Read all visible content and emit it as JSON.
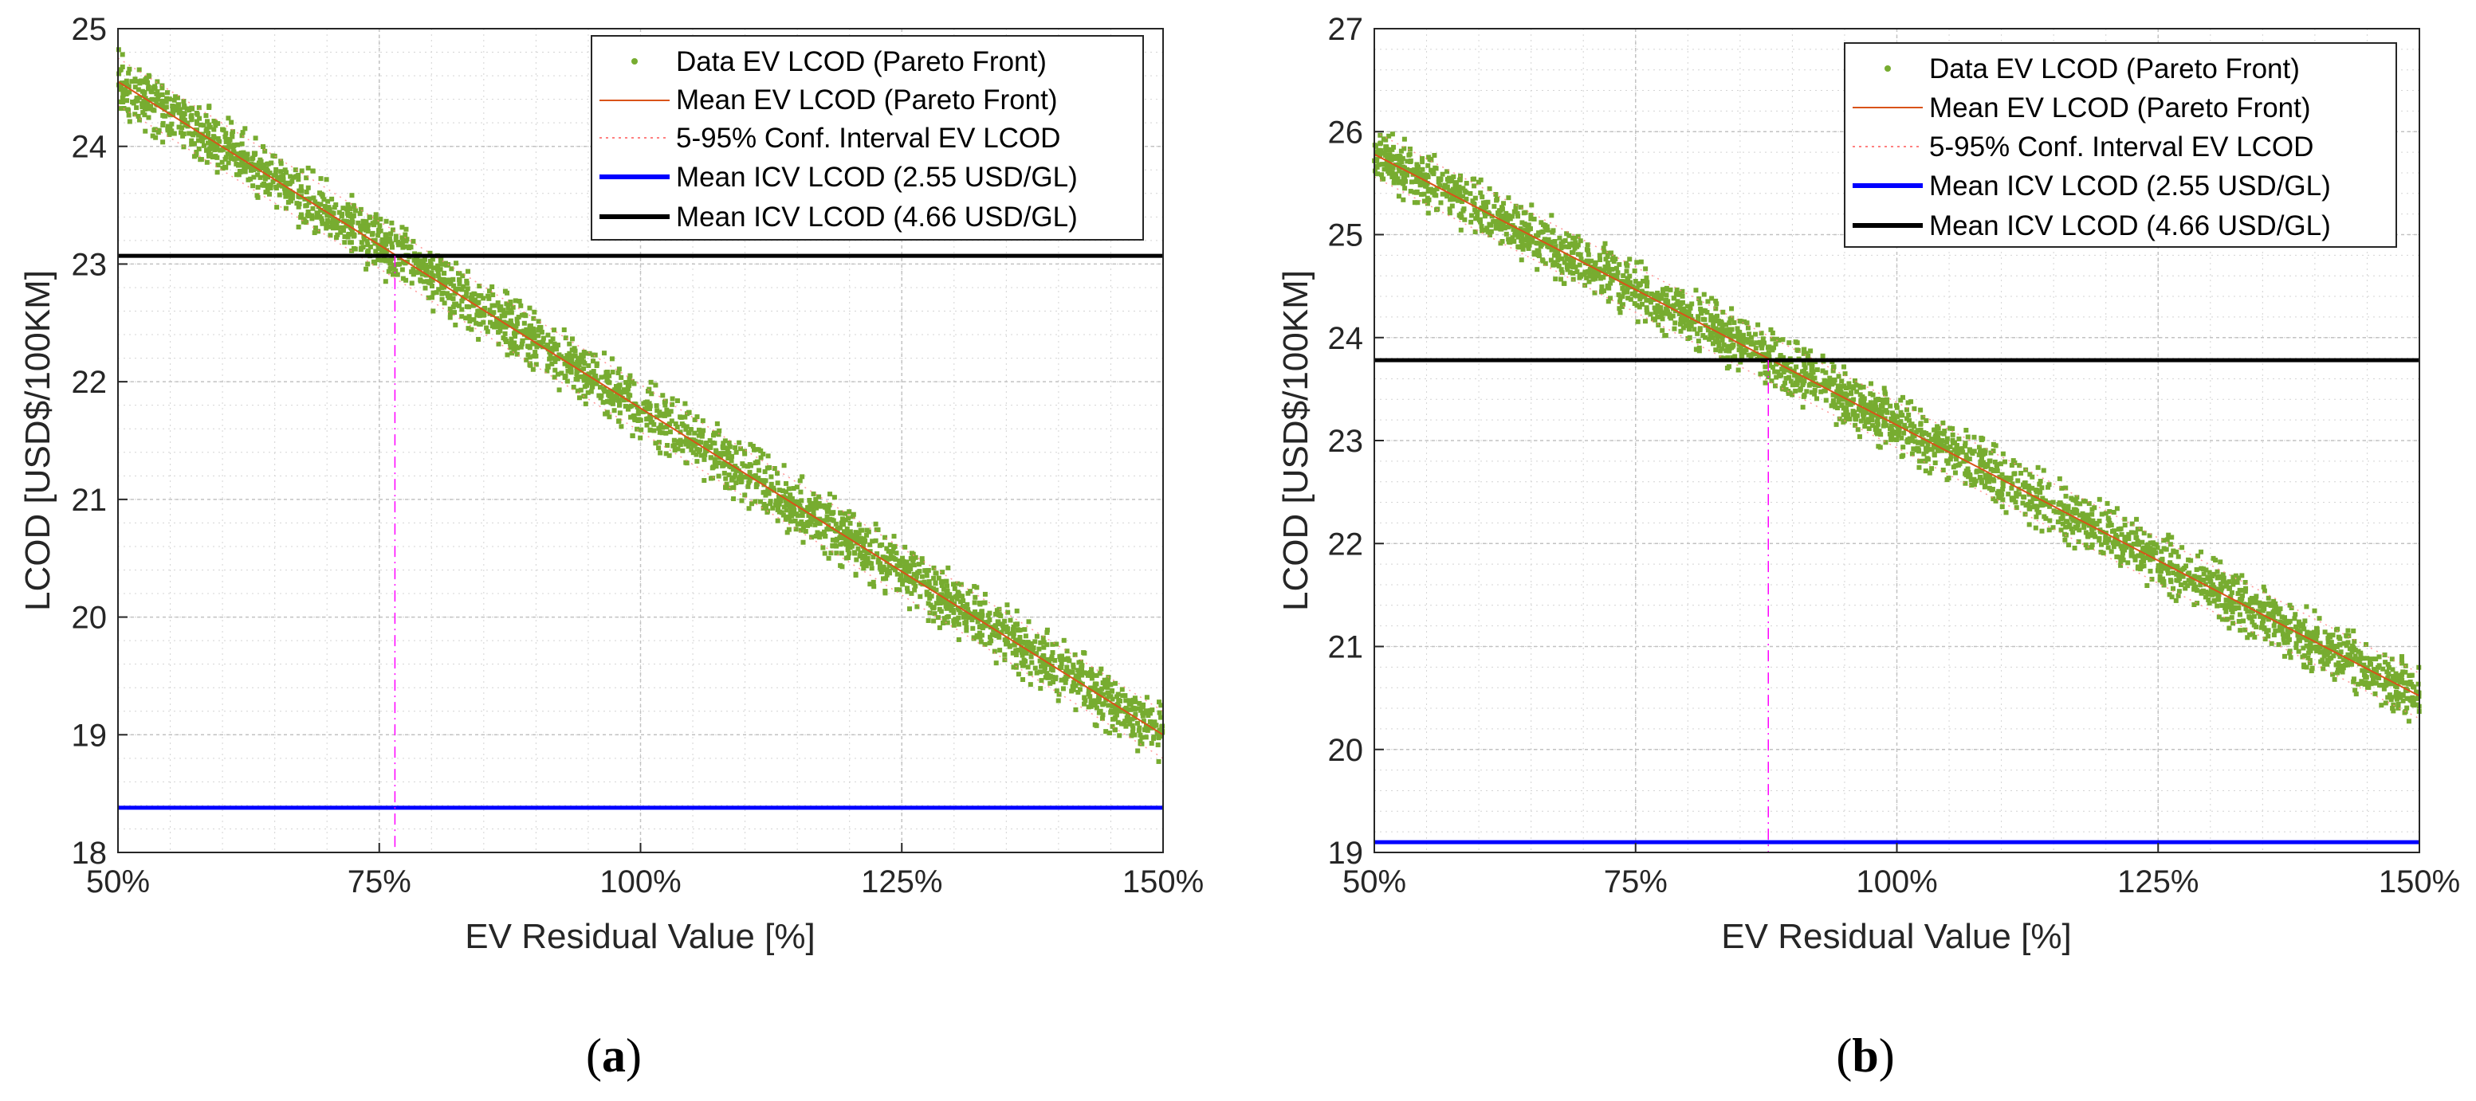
{
  "chart_data": [
    {
      "type": "scatter",
      "panel": "a",
      "caption": {
        "open": "(",
        "letter": "a",
        "close": ")"
      },
      "xlabel": "EV Residual Value [%]",
      "ylabel": "LCOD [USD$/100KM]",
      "xlim": [
        50,
        150
      ],
      "ylim": [
        18,
        25
      ],
      "xticks": [
        {
          "value": 50,
          "label": "50%"
        },
        {
          "value": 75,
          "label": "75%"
        },
        {
          "value": 100,
          "label": "100%"
        },
        {
          "value": 125,
          "label": "125%"
        },
        {
          "value": 150,
          "label": "150%"
        }
      ],
      "yticks": [
        {
          "value": 18,
          "label": "18"
        },
        {
          "value": 19,
          "label": "19"
        },
        {
          "value": 20,
          "label": "20"
        },
        {
          "value": 21,
          "label": "21"
        },
        {
          "value": 22,
          "label": "22"
        },
        {
          "value": 23,
          "label": "23"
        },
        {
          "value": 24,
          "label": "24"
        },
        {
          "value": 25,
          "label": "25"
        }
      ],
      "grid": true,
      "legend_position": "top-right",
      "series": {
        "data": {
          "name": "Data EV LCOD (Pareto Front)",
          "color": "#77ac30",
          "x_start": 50,
          "x_end": 150,
          "y_start": 24.55,
          "y_end": 19.0,
          "spread": 0.12
        },
        "mean": {
          "name": "Mean EV LCOD (Pareto Front)",
          "color": "#d95319",
          "x": [
            50,
            150
          ],
          "y": [
            24.55,
            19.0
          ]
        },
        "conf": {
          "name": "5-95% Conf. Interval EV LCOD",
          "color": "#ff8080",
          "y_offset": 0.2
        },
        "icv_low": {
          "name": "Mean ICV LCOD (2.55 USD/GL)",
          "color": "#0000ff",
          "y": 18.38
        },
        "icv_high": {
          "name": "Mean ICV LCOD (4.66 USD/GL)",
          "color": "#000000",
          "y": 23.07
        }
      },
      "breakeven": {
        "x": 76.5,
        "color": "#ff00ff"
      }
    },
    {
      "type": "scatter",
      "panel": "b",
      "caption": {
        "open": "(",
        "letter": "b",
        "close": ")"
      },
      "xlabel": "EV Residual Value [%]",
      "ylabel": "LCOD [USD$/100KM]",
      "xlim": [
        50,
        150
      ],
      "ylim": [
        19,
        27
      ],
      "xticks": [
        {
          "value": 50,
          "label": "50%"
        },
        {
          "value": 75,
          "label": "75%"
        },
        {
          "value": 100,
          "label": "100%"
        },
        {
          "value": 125,
          "label": "125%"
        },
        {
          "value": 150,
          "label": "150%"
        }
      ],
      "yticks": [
        {
          "value": 19,
          "label": "19"
        },
        {
          "value": 20,
          "label": "20"
        },
        {
          "value": 21,
          "label": "21"
        },
        {
          "value": 22,
          "label": "22"
        },
        {
          "value": 23,
          "label": "23"
        },
        {
          "value": 24,
          "label": "24"
        },
        {
          "value": 25,
          "label": "25"
        },
        {
          "value": 26,
          "label": "26"
        },
        {
          "value": 27,
          "label": "27"
        }
      ],
      "grid": true,
      "legend_position": "top-right",
      "series": {
        "data": {
          "name": "Data EV LCOD (Pareto Front)",
          "color": "#77ac30",
          "x_start": 50,
          "x_end": 150,
          "y_start": 25.78,
          "y_end": 20.52,
          "spread": 0.13
        },
        "mean": {
          "name": "Mean EV LCOD (Pareto Front)",
          "color": "#d95319",
          "x": [
            50,
            150
          ],
          "y": [
            25.78,
            20.52
          ]
        },
        "conf": {
          "name": "5-95% Conf. Interval EV LCOD",
          "color": "#ff8080",
          "y_offset": 0.22
        },
        "icv_low": {
          "name": "Mean ICV LCOD (2.55 USD/GL)",
          "color": "#0000ff",
          "y": 19.1
        },
        "icv_high": {
          "name": "Mean ICV LCOD (4.66 USD/GL)",
          "color": "#000000",
          "y": 23.78
        }
      },
      "breakeven": {
        "x": 87.7,
        "color": "#ff00ff"
      }
    }
  ]
}
